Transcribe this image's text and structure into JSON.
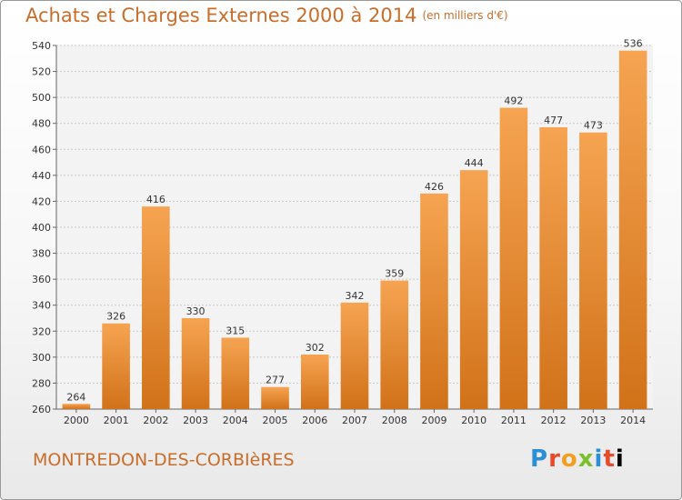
{
  "title": "Achats et Charges Externes 2000 à 2014",
  "unit": "(en milliers d'€)",
  "commune": "MONTREDON-DES-CORBIèRES",
  "logo": "Proxiti",
  "colors": {
    "bar_top": "#f6a452",
    "bar_bottom": "#d17219",
    "text_accent": "#c86d2a"
  },
  "chart_data": {
    "type": "bar",
    "title": "Achats et Charges Externes 2000 à 2014",
    "categories": [
      "2000",
      "2001",
      "2002",
      "2003",
      "2004",
      "2005",
      "2006",
      "2007",
      "2008",
      "2009",
      "2010",
      "2011",
      "2012",
      "2013",
      "2014"
    ],
    "values": [
      264,
      326,
      416,
      330,
      315,
      277,
      302,
      342,
      359,
      426,
      444,
      492,
      477,
      473,
      536
    ],
    "ylim": [
      260,
      540
    ],
    "yticks": [
      260,
      280,
      300,
      320,
      340,
      360,
      380,
      400,
      420,
      440,
      460,
      480,
      500,
      520,
      540
    ],
    "grid": true,
    "xlabel": "",
    "ylabel": ""
  }
}
